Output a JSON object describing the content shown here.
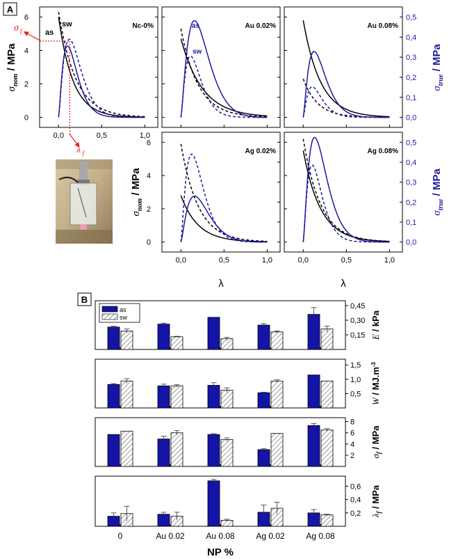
{
  "figure": {
    "colors": {
      "as": "#1a1aa0",
      "sw_line": "#1a1aa0",
      "black": "#000000",
      "annot": "#e02020",
      "as_bar": "#1414a8"
    },
    "panel_A_label": "A",
    "panel_B_label": "B",
    "photo_icon": "sample-photo"
  },
  "chart_data": [
    {
      "type": "line",
      "panel": "A",
      "left_axis": {
        "ticks": [
          "0",
          "2",
          "4",
          "6"
        ],
        "ylim": [
          -0.6,
          6.6
        ]
      },
      "right_axis": {
        "ticks": [
          "0,0",
          "0,1",
          "0,2",
          "0,3",
          "0,4",
          "0,5"
        ],
        "ylim": [
          -0.05,
          0.55
        ]
      },
      "x_axis": {
        "ticks": [
          "0,0",
          "0,5",
          "1,0"
        ],
        "xlim": [
          -0.22,
          1.15
        ]
      },
      "ylabel_left": {
        "main": "σ",
        "sub": "nom",
        "rest": " / MPa"
      },
      "ylabel_right": {
        "main": "σ",
        "sub": "true",
        "rest": " / MPa"
      },
      "xlabel": "λ",
      "subplots": [
        {
          "title": "Nc-0%",
          "annotations": {
            "as": "as",
            "sw": "sw",
            "sigma_f": "σ",
            "sigma_f_sub": "f",
            "lambda_f": "λ",
            "lambda_f_sub": "f"
          },
          "series": [
            {
              "name": "as",
              "style": "black-solid",
              "peak_x": 0.0,
              "peak_y": 6.0,
              "decay": 6
            },
            {
              "name": "sw",
              "style": "black-dashed",
              "peak_x": 0.0,
              "peak_y": 6.3,
              "decay": 5
            },
            {
              "name": "as",
              "style": "blue-solid",
              "peak_x": 0.12,
              "peak_y": 0.35
            },
            {
              "name": "sw",
              "style": "blue-dashed",
              "peak_x": 0.15,
              "peak_y": 0.38
            }
          ]
        },
        {
          "title": "Au 0.02%",
          "annotations": {
            "as": "as",
            "sw": "sw"
          },
          "series": [
            {
              "name": "as",
              "style": "black-solid",
              "peak_x": 0.0,
              "peak_y": 4.7,
              "decay": 4
            },
            {
              "name": "sw",
              "style": "black-dashed",
              "peak_x": 0.0,
              "peak_y": 5.3,
              "decay": 5
            },
            {
              "name": "as",
              "style": "blue-solid",
              "peak_x": 0.2,
              "peak_y": 0.46
            },
            {
              "name": "sw",
              "style": "blue-dashed",
              "peak_x": 0.13,
              "peak_y": 0.3
            }
          ]
        },
        {
          "title": "Au 0.08%",
          "series": [
            {
              "name": "as",
              "style": "black-solid",
              "peak_x": 0.0,
              "peak_y": 5.8,
              "decay": 5
            },
            {
              "name": "sw",
              "style": "black-dashed",
              "peak_x": 0.0,
              "peak_y": 2.3,
              "decay": 6
            },
            {
              "name": "as",
              "style": "blue-solid",
              "peak_x": 0.15,
              "peak_y": 0.32
            },
            {
              "name": "sw",
              "style": "blue-dashed",
              "peak_x": 0.12,
              "peak_y": 0.15
            }
          ]
        },
        {
          "title": "Ag 0.02%",
          "series": [
            {
              "name": "as",
              "style": "black-solid",
              "peak_x": 0.0,
              "peak_y": 2.8,
              "decay": 5
            },
            {
              "name": "sw",
              "style": "black-dashed",
              "peak_x": 0.0,
              "peak_y": 5.9,
              "decay": 5
            },
            {
              "name": "as",
              "style": "blue-solid",
              "peak_x": 0.2,
              "peak_y": 0.22
            },
            {
              "name": "sw",
              "style": "blue-dashed",
              "peak_x": 0.15,
              "peak_y": 0.43
            }
          ]
        },
        {
          "title": "Ag 0.08%",
          "series": [
            {
              "name": "as",
              "style": "black-solid",
              "peak_x": 0.0,
              "peak_y": 5.5,
              "decay": 5
            },
            {
              "name": "sw",
              "style": "black-dashed",
              "peak_x": 0.0,
              "peak_y": 6.2,
              "decay": 5
            },
            {
              "name": "as",
              "style": "blue-solid",
              "peak_x": 0.16,
              "peak_y": 0.51
            },
            {
              "name": "sw",
              "style": "blue-dashed",
              "peak_x": 0.12,
              "peak_y": 0.38
            }
          ]
        }
      ]
    },
    {
      "type": "bar",
      "panel": "B",
      "categories": [
        "0",
        "Au 0.02",
        "Au 0.08",
        "Ag 0.02",
        "Ag 0.08"
      ],
      "xlabel": "NP %",
      "legend": {
        "entries": [
          "as",
          "sw"
        ],
        "position": "top-left"
      },
      "rows": [
        {
          "ylabel_main": "E",
          "ylabel_rest": " / kPa",
          "ticks": [
            "0,15",
            "0,30",
            "0,45"
          ],
          "tick_values": [
            0.15,
            0.3,
            0.45
          ],
          "ylim": [
            0,
            0.5
          ],
          "series": [
            {
              "name": "as",
              "values": [
                0.23,
                0.26,
                0.33,
                0.25,
                0.36
              ],
              "err": [
                0.01,
                0.01,
                0,
                0.015,
                0.07
              ]
            },
            {
              "name": "sw",
              "values": [
                0.19,
                0.13,
                0.11,
                0.18,
                0.21
              ],
              "err": [
                0.02,
                0.005,
                0.015,
                0.01,
                0.03
              ]
            }
          ]
        },
        {
          "ylabel_main": "W",
          "ylabel_rest": " / MJ.m",
          "ylabel_sup": "-3",
          "ticks": [
            "0,5",
            "1,0",
            "1,5"
          ],
          "tick_values": [
            0.5,
            1.0,
            1.5
          ],
          "ylim": [
            0,
            1.7
          ],
          "series": [
            {
              "name": "as",
              "values": [
                0.82,
                0.77,
                0.79,
                0.53,
                1.15
              ],
              "err": [
                0.03,
                0.06,
                0.09,
                0.02,
                0
              ]
            },
            {
              "name": "sw",
              "values": [
                0.94,
                0.77,
                0.62,
                0.94,
                0.94
              ],
              "err": [
                0.08,
                0.04,
                0.08,
                0.04,
                0
              ]
            }
          ]
        },
        {
          "ylabel_main": "σ",
          "ylabel_sub": "f",
          "ylabel_rest": " / MPa",
          "ticks": [
            "2",
            "4",
            "6",
            "8"
          ],
          "tick_values": [
            2,
            4,
            6,
            8
          ],
          "ylim": [
            0,
            8.7
          ],
          "series": [
            {
              "name": "as",
              "values": [
                5.7,
                4.9,
                5.7,
                3.0,
                7.3
              ],
              "err": [
                0,
                0.5,
                0.15,
                0.15,
                0.35
              ]
            },
            {
              "name": "sw",
              "values": [
                6.3,
                6.0,
                4.8,
                5.9,
                6.5
              ],
              "err": [
                0,
                0.4,
                0.3,
                0,
                0.25
              ]
            }
          ]
        },
        {
          "ylabel_main": "λ",
          "ylabel_sub": "f",
          "ylabel_rest": " / MPa",
          "ticks": [
            "0,2",
            "0,4",
            "0,6"
          ],
          "tick_values": [
            0.2,
            0.4,
            0.6
          ],
          "ylim": [
            0,
            0.75
          ],
          "series": [
            {
              "name": "as",
              "values": [
                0.15,
                0.18,
                0.68,
                0.21,
                0.2
              ],
              "err": [
                0.05,
                0.03,
                0.02,
                0.11,
                0.05
              ]
            },
            {
              "name": "sw",
              "values": [
                0.19,
                0.15,
                0.09,
                0.27,
                0.17
              ],
              "err": [
                0.11,
                0.06,
                0.015,
                0.09,
                0.01
              ]
            }
          ]
        }
      ],
      "x_tick_labels": [
        "0",
        "Au 0.02",
        "Au 0.08",
        "Ag 0.02",
        "Ag 0.08"
      ]
    }
  ]
}
